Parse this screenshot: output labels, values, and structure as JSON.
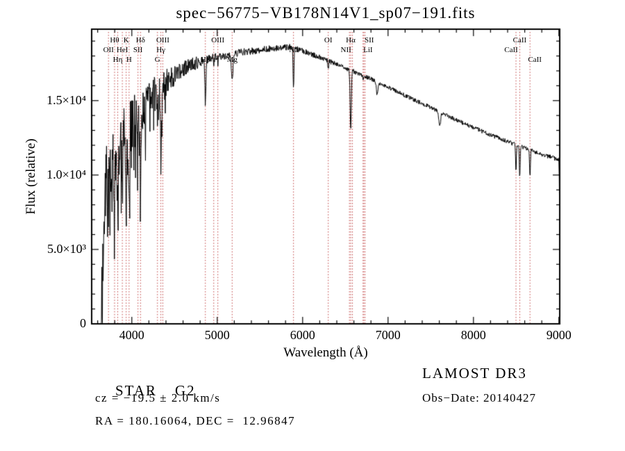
{
  "colors": {
    "spectrum_line": "#000000",
    "marker_line": "#c04040",
    "text": "#000000",
    "background": "#ffffff"
  },
  "chart_data": {
    "type": "line",
    "title": "spec−56775−VB178N14V1_sp07−191.fits",
    "xlabel": "Wavelength (Å)",
    "ylabel": "Flux (relative)",
    "xlim": [
      3530,
      9010
    ],
    "ylim": [
      0,
      19800
    ],
    "x_ticks": [
      4000,
      5000,
      6000,
      7000,
      8000,
      9000
    ],
    "x_tick_labels": [
      "4000",
      "5000",
      "6000",
      "7000",
      "8000",
      "9000"
    ],
    "y_ticks": [
      0,
      5000,
      10000,
      15000
    ],
    "y_tick_labels": [
      "0",
      "5.0×10³",
      "1.0×10⁴",
      "1.5×10⁴"
    ],
    "x_minor_step": 200,
    "y_minor_step": 1000,
    "grid": false,
    "noise_seed": 20140427,
    "continuum": [
      [
        3640,
        900
      ],
      [
        3660,
        4000
      ],
      [
        3680,
        7500
      ],
      [
        3700,
        9800
      ],
      [
        3730,
        10400
      ],
      [
        3780,
        11200
      ],
      [
        3850,
        12100
      ],
      [
        3920,
        12800
      ],
      [
        3980,
        13200
      ],
      [
        4050,
        13900
      ],
      [
        4150,
        14700
      ],
      [
        4250,
        15400
      ],
      [
        4400,
        16200
      ],
      [
        4550,
        16900
      ],
      [
        4700,
        17400
      ],
      [
        4900,
        17800
      ],
      [
        5100,
        18050
      ],
      [
        5300,
        18250
      ],
      [
        5500,
        18400
      ],
      [
        5700,
        18550
      ],
      [
        5850,
        18600
      ],
      [
        6000,
        18350
      ],
      [
        6200,
        17900
      ],
      [
        6400,
        17450
      ],
      [
        6600,
        16950
      ],
      [
        6800,
        16450
      ],
      [
        7000,
        15900
      ],
      [
        7200,
        15350
      ],
      [
        7400,
        14800
      ],
      [
        7600,
        14250
      ],
      [
        7800,
        13700
      ],
      [
        8000,
        13200
      ],
      [
        8200,
        12700
      ],
      [
        8400,
        12250
      ],
      [
        8600,
        11800
      ],
      [
        8800,
        11400
      ],
      [
        8990,
        11050
      ],
      [
        9000,
        11000
      ],
      [
        9006,
        9500
      ],
      [
        9012,
        2500
      ],
      [
        9018,
        400
      ]
    ],
    "noise_profile": [
      [
        3640,
        2400
      ],
      [
        3850,
        2100
      ],
      [
        4050,
        1750
      ],
      [
        4250,
        1250
      ],
      [
        4450,
        800
      ],
      [
        4650,
        520
      ],
      [
        4900,
        340
      ],
      [
        5200,
        260
      ],
      [
        5600,
        220
      ],
      [
        6000,
        185
      ],
      [
        6500,
        160
      ],
      [
        7200,
        140
      ],
      [
        8200,
        140
      ],
      [
        9020,
        160
      ]
    ],
    "absorption_lines": [
      {
        "wavelength": 3727,
        "depth": 0.18,
        "sigma": 5
      },
      {
        "wavelength": 3798,
        "depth": 0.3,
        "sigma": 5
      },
      {
        "wavelength": 3835,
        "depth": 0.32,
        "sigma": 5
      },
      {
        "wavelength": 3889,
        "depth": 0.35,
        "sigma": 5
      },
      {
        "wavelength": 3934,
        "depth": 0.45,
        "sigma": 6
      },
      {
        "wavelength": 3968,
        "depth": 0.42,
        "sigma": 6
      },
      {
        "wavelength": 4072,
        "depth": 0.12,
        "sigma": 4
      },
      {
        "wavelength": 4102,
        "depth": 0.3,
        "sigma": 6
      },
      {
        "wavelength": 4300,
        "depth": 0.1,
        "sigma": 12
      },
      {
        "wavelength": 4340,
        "depth": 0.22,
        "sigma": 6
      },
      {
        "wavelength": 4363,
        "depth": 0.03,
        "sigma": 4
      },
      {
        "wavelength": 4861,
        "depth": 0.16,
        "sigma": 6
      },
      {
        "wavelength": 4959,
        "depth": 0.02,
        "sigma": 4
      },
      {
        "wavelength": 5007,
        "depth": 0.02,
        "sigma": 4
      },
      {
        "wavelength": 5175,
        "depth": 0.1,
        "sigma": 9
      },
      {
        "wavelength": 5893,
        "depth": 0.15,
        "sigma": 5
      },
      {
        "wavelength": 6300,
        "depth": 0.03,
        "sigma": 5
      },
      {
        "wavelength": 6563,
        "depth": 0.23,
        "sigma": 7
      },
      {
        "wavelength": 6708,
        "depth": 0.02,
        "sigma": 4
      },
      {
        "wavelength": 6872,
        "depth": 0.05,
        "sigma": 9
      },
      {
        "wavelength": 7605,
        "depth": 0.06,
        "sigma": 11
      },
      {
        "wavelength": 8498,
        "depth": 0.14,
        "sigma": 5
      },
      {
        "wavelength": 8542,
        "depth": 0.17,
        "sigma": 5
      },
      {
        "wavelength": 8662,
        "depth": 0.15,
        "sigma": 5
      }
    ],
    "marker_wavelengths": [
      3727,
      3798,
      3835,
      3889,
      3934,
      3968,
      4072,
      4102,
      4300,
      4340,
      4363,
      4861,
      4959,
      5007,
      5175,
      5893,
      6300,
      6548,
      6563,
      6583,
      6708,
      6716,
      6731,
      8498,
      8542,
      8662
    ],
    "spectral_line_labels": [
      {
        "label": "Hθ",
        "wavelength": 3798,
        "row": 1
      },
      {
        "label": "K",
        "wavelength": 3934,
        "row": 1
      },
      {
        "label": "Hδ",
        "wavelength": 4102,
        "row": 1
      },
      {
        "label": "OIII",
        "wavelength": 4363,
        "row": 1
      },
      {
        "label": "OIII",
        "wavelength": 5007,
        "row": 1
      },
      {
        "label": "OI",
        "wavelength": 6300,
        "row": 1
      },
      {
        "label": "Hα",
        "wavelength": 6563,
        "row": 1
      },
      {
        "label": "SII",
        "wavelength": 6731,
        "row": 1,
        "dx": 6
      },
      {
        "label": "CaII",
        "wavelength": 8542,
        "row": 1
      },
      {
        "label": "OII",
        "wavelength": 3727,
        "row": 2
      },
      {
        "label": "HeI",
        "wavelength": 3889,
        "row": 2
      },
      {
        "label": "SII",
        "wavelength": 4072,
        "row": 2
      },
      {
        "label": "Hγ",
        "wavelength": 4340,
        "row": 2
      },
      {
        "label": "Na",
        "wavelength": 5893,
        "row": 2
      },
      {
        "label": "NII",
        "wavelength": 6548,
        "row": 2,
        "dx": -5
      },
      {
        "label": "LiI",
        "wavelength": 6708,
        "row": 2,
        "dx": 7
      },
      {
        "label": "CaII",
        "wavelength": 8498,
        "row": 2,
        "dx": -7
      },
      {
        "label": "Hη",
        "wavelength": 3835,
        "row": 3
      },
      {
        "label": "H",
        "wavelength": 3968,
        "row": 3
      },
      {
        "label": "G",
        "wavelength": 4300,
        "row": 3
      },
      {
        "label": "Hβ",
        "wavelength": 4861,
        "row": 3
      },
      {
        "label": "Mg",
        "wavelength": 5175,
        "row": 3
      },
      {
        "label": "CaII",
        "wavelength": 8662,
        "row": 3,
        "dx": 7
      }
    ]
  },
  "annotations": {
    "object_class": "STAR",
    "subclass": "G2",
    "survey": "LAMOST DR3",
    "cz": "cz = −19.5 ± 2.0 km/s",
    "obs_date": "Obs−Date: 20140427",
    "coords": "RA = 180.16064, DEC =  12.96847"
  }
}
